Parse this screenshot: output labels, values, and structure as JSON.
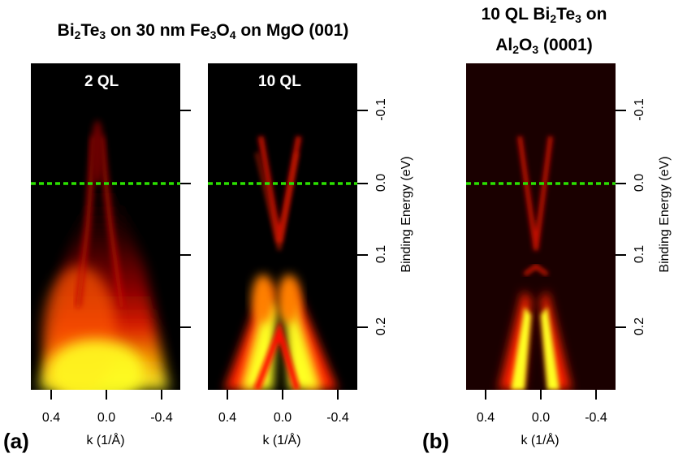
{
  "figure_a": {
    "title_parts": [
      "Bi",
      "2",
      "Te",
      "3",
      " on 30 nm Fe",
      "3",
      "O",
      "4",
      " on MgO (001)"
    ],
    "panel_left_label": "2 QL",
    "panel_right_label": "10 QL",
    "letter": "(a)"
  },
  "figure_b": {
    "title_line1_parts": [
      "10 QL Bi",
      "2",
      "Te",
      "3",
      " on"
    ],
    "title_line2_parts": [
      "Al",
      "2",
      "O",
      "3",
      " (0001)"
    ],
    "letter": "(b)"
  },
  "axes": {
    "x_label": "k (1/Å)",
    "x_ticks": [
      "0.4",
      "0.0",
      "-0.4"
    ],
    "y_label": "Binding Energy (eV)",
    "y_ticks": [
      "-0.1",
      "0.0",
      "0.1",
      "0.2"
    ]
  },
  "colors": {
    "fermi_line": "#2be000",
    "hot_low": "#8b0000",
    "hot_mid": "#ff3a00",
    "hot_high": "#ffff10"
  }
}
